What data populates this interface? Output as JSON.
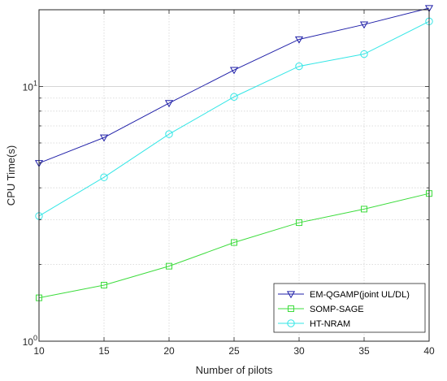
{
  "chart_data": {
    "type": "line",
    "title": "",
    "xlabel": "Number of pilots",
    "ylabel": "CPU Time(s)",
    "x": [
      10,
      15,
      20,
      25,
      30,
      35,
      40
    ],
    "xlim": [
      10,
      40
    ],
    "xticks": [
      "10",
      "15",
      "20",
      "25",
      "30",
      "35",
      "40"
    ],
    "yscale": "log",
    "ylim": [
      1,
      20
    ],
    "yticks": [
      {
        "value": 1,
        "base": "10",
        "exp": "0"
      },
      {
        "value": 10,
        "base": "10",
        "exp": "1"
      }
    ],
    "grid": true,
    "legend_position": "bottom-right",
    "series": [
      {
        "name": "EM-QGAMP(joint UL/DL)",
        "color": "#1f1fa8",
        "marker": "triangle-down",
        "values": [
          5.0,
          6.3,
          8.6,
          11.6,
          15.3,
          17.5,
          20.3
        ]
      },
      {
        "name": "SOMP-SAGE",
        "color": "#3cdc3c",
        "marker": "square",
        "values": [
          1.48,
          1.66,
          1.97,
          2.44,
          2.92,
          3.3,
          3.8
        ]
      },
      {
        "name": "HT-NRAM",
        "color": "#33e6e6",
        "marker": "circle",
        "values": [
          3.1,
          4.4,
          6.5,
          9.1,
          12.0,
          13.4,
          18.0
        ]
      }
    ]
  }
}
